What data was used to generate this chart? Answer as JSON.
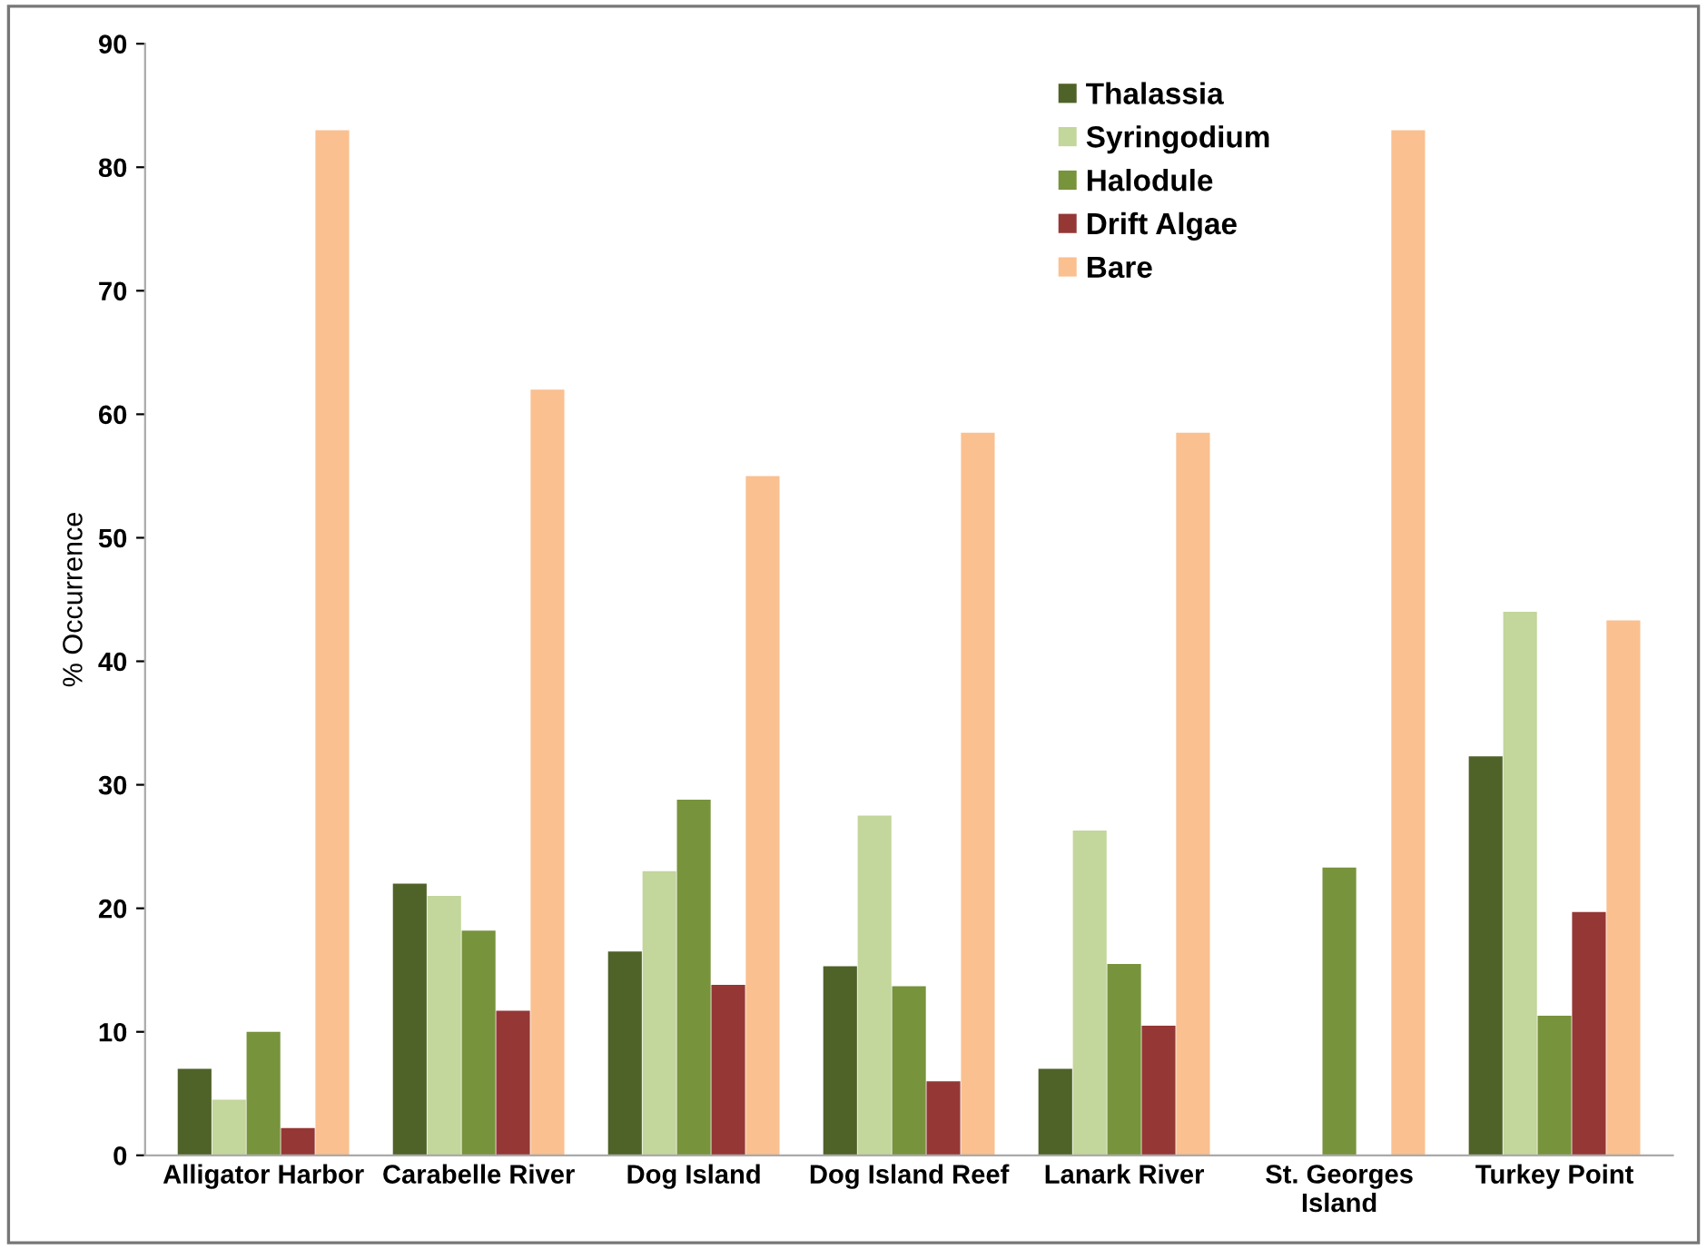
{
  "chart_data": {
    "type": "bar",
    "ylabel": "% Occurrence",
    "categories": [
      "Alligator Harbor",
      "Carabelle River",
      "Dog Island",
      "Dog Island Reef",
      "Lanark River",
      "St. Georges\nIsland",
      "Turkey Point"
    ],
    "series": [
      {
        "name": "Thalassia",
        "color": "#4f6228",
        "values": [
          7,
          22,
          16.5,
          15.3,
          7,
          0,
          32.3
        ]
      },
      {
        "name": "Syringodium",
        "color": "#c3d69b",
        "values": [
          4.5,
          21,
          23,
          27.5,
          26.3,
          0,
          44
        ]
      },
      {
        "name": "Halodule",
        "color": "#77933c",
        "values": [
          10,
          18.2,
          28.8,
          13.7,
          15.5,
          23.3,
          11.3
        ]
      },
      {
        "name": "Drift Algae",
        "color": "#953735",
        "values": [
          2.2,
          11.7,
          13.8,
          6,
          10.5,
          0,
          19.7
        ]
      },
      {
        "name": "Bare",
        "color": "#fac090",
        "values": [
          83,
          62,
          55,
          58.5,
          58.5,
          83,
          43.3
        ]
      }
    ],
    "ylim": [
      0,
      90
    ],
    "yticks": [
      0,
      10,
      20,
      30,
      40,
      50,
      60,
      70,
      80,
      90
    ],
    "grid": false,
    "legend": "top"
  }
}
